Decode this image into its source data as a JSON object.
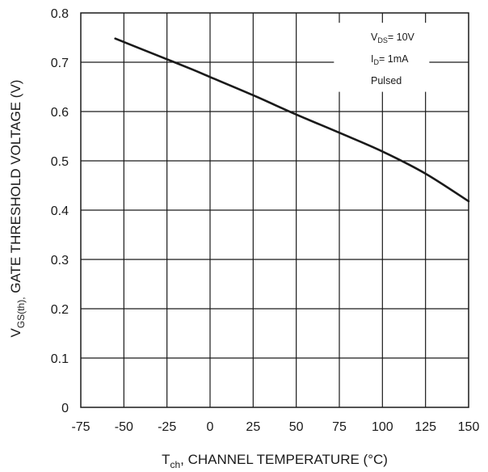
{
  "chart_data": {
    "type": "line",
    "xlabel_main": "T",
    "xlabel_sub": "ch",
    "xlabel_rest": ", CHANNEL TEMPERATURE (°C)",
    "ylabel_main": "V",
    "ylabel_sub": "GS(th),",
    "ylabel_rest": " GATE THRESHOLD VOLTAGE (V)",
    "xlim": [
      -75,
      150
    ],
    "ylim": [
      0,
      0.8
    ],
    "x_ticks": [
      "-75",
      "-50",
      "-25",
      "0",
      "25",
      "50",
      "75",
      "100",
      "125",
      "150"
    ],
    "y_ticks": [
      "0",
      "0.1",
      "0.2",
      "0.3",
      "0.4",
      "0.5",
      "0.6",
      "0.7",
      "0.8"
    ],
    "grid": true,
    "series": [
      {
        "x": [
          -55,
          -40,
          -25,
          -10,
          0,
          25,
          50,
          75,
          100,
          125,
          150
        ],
        "y": [
          0.748,
          0.727,
          0.706,
          0.685,
          0.67,
          0.633,
          0.594,
          0.557,
          0.519,
          0.474,
          0.418
        ]
      }
    ],
    "annotation": {
      "line1_main": "V",
      "line1_sub": "DS",
      "line1_rest": "= 10V",
      "line2_main": "I",
      "line2_sub": "D",
      "line2_rest": "= 1mA",
      "line3": "Pulsed"
    }
  }
}
